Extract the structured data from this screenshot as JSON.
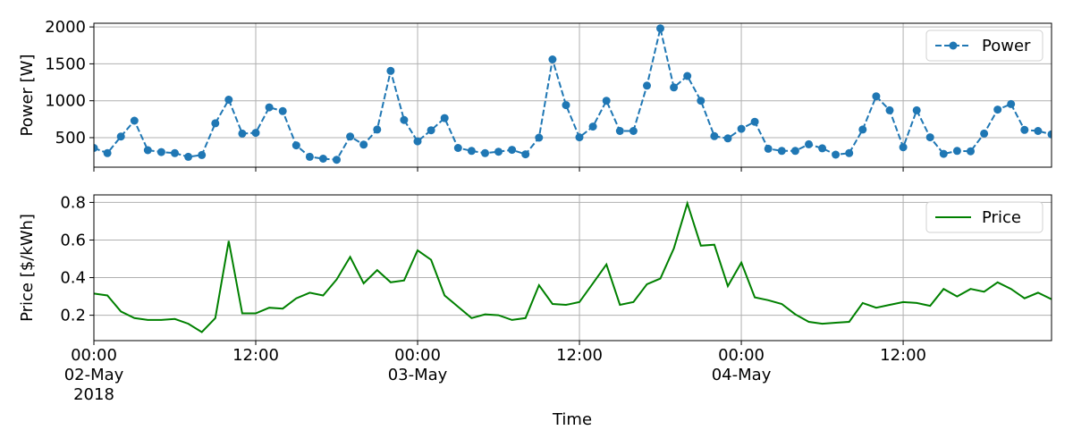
{
  "chart_data": [
    {
      "type": "line",
      "ylabel": "Power [W]",
      "ylim": [
        100,
        2050
      ],
      "yticks": [
        500,
        1000,
        1500,
        2000
      ],
      "grid": true,
      "legend": "top-right",
      "color": "#1f77b4",
      "line_style": "dashed",
      "marker": "circle",
      "series": [
        {
          "name": "Power",
          "values": [
            360,
            290,
            515,
            730,
            330,
            305,
            290,
            240,
            265,
            695,
            1015,
            555,
            565,
            910,
            860,
            395,
            240,
            215,
            200,
            515,
            405,
            610,
            1405,
            740,
            450,
            600,
            765,
            360,
            320,
            290,
            310,
            335,
            275,
            500,
            1560,
            940,
            505,
            650,
            1000,
            590,
            590,
            1205,
            1980,
            1180,
            1335,
            1000,
            520,
            490,
            620,
            715,
            350,
            320,
            320,
            410,
            355,
            270,
            290,
            610,
            1060,
            870,
            370,
            870,
            505,
            280,
            320,
            315,
            555,
            880,
            955,
            605,
            590,
            545
          ]
        }
      ]
    },
    {
      "type": "line",
      "ylabel": "Price [$/kWh]",
      "ylim": [
        0.065,
        0.84
      ],
      "yticks": [
        "0.2",
        "0.4",
        "0.6",
        "0.8"
      ],
      "grid": true,
      "legend": "top-right",
      "color": "#008000",
      "line_style": "solid",
      "series": [
        {
          "name": "Price",
          "values": [
            0.315,
            0.305,
            0.22,
            0.185,
            0.175,
            0.175,
            0.18,
            0.155,
            0.11,
            0.185,
            0.595,
            0.21,
            0.21,
            0.24,
            0.235,
            0.29,
            0.32,
            0.305,
            0.39,
            0.51,
            0.37,
            0.44,
            0.375,
            0.385,
            0.545,
            0.495,
            0.305,
            0.245,
            0.185,
            0.205,
            0.2,
            0.175,
            0.185,
            0.36,
            0.26,
            0.255,
            0.27,
            0.37,
            0.47,
            0.255,
            0.27,
            0.365,
            0.395,
            0.555,
            0.795,
            0.57,
            0.575,
            0.355,
            0.48,
            0.295,
            0.28,
            0.26,
            0.205,
            0.165,
            0.155,
            0.16,
            0.165,
            0.265,
            0.24,
            0.255,
            0.27,
            0.265,
            0.25,
            0.34,
            0.3,
            0.34,
            0.325,
            0.375,
            0.34,
            0.29,
            0.32,
            0.285
          ]
        }
      ]
    }
  ],
  "x_axis": {
    "label": "Time",
    "ticks": [
      {
        "lines": [
          "00:00",
          "02-May",
          "2018"
        ],
        "hour": 0
      },
      {
        "lines": [
          "12:00"
        ],
        "hour": 12
      },
      {
        "lines": [
          "00:00",
          "03-May"
        ],
        "hour": 24
      },
      {
        "lines": [
          "12:00"
        ],
        "hour": 36
      },
      {
        "lines": [
          "00:00",
          "04-May"
        ],
        "hour": 48
      },
      {
        "lines": [
          "12:00"
        ],
        "hour": 60
      }
    ],
    "range_hours": [
      0,
      71
    ],
    "sample_interval_hours": 1
  }
}
